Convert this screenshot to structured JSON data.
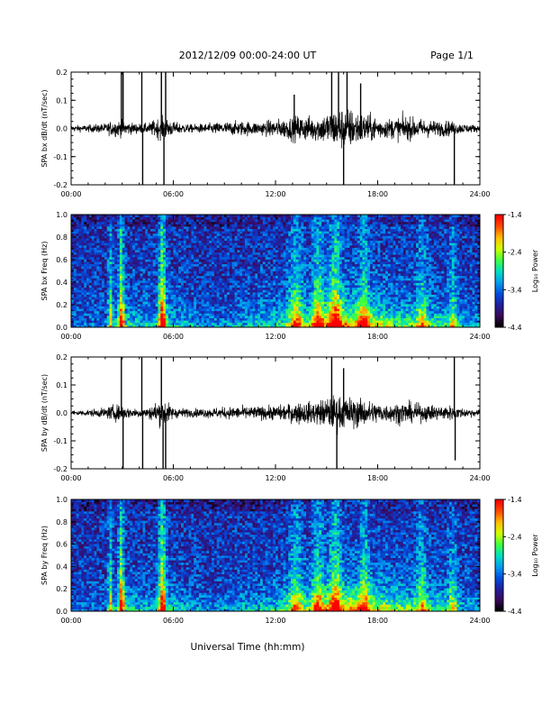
{
  "header": {
    "title": "2012/12/09  00:00-24:00 UT",
    "page": "Page 1/1"
  },
  "footer": {
    "xlabel": "Universal Time (hh:mm)"
  },
  "colorbar": {
    "title": "Log₁₀ Power",
    "ticks": [
      -1.4,
      -2.4,
      -3.4,
      -4.4
    ],
    "range": [
      -4.4,
      -1.4
    ],
    "colors": [
      "#000000",
      "#3a0a5a",
      "#2020a0",
      "#0050e0",
      "#00a0f0",
      "#00e0c0",
      "#40ff40",
      "#d0ff00",
      "#ffc000",
      "#ff5000",
      "#ff0000"
    ]
  },
  "chart_data": [
    {
      "type": "line",
      "name": "bx-waveform",
      "ylabel": "SPA bx dB/dt (nT/sec)",
      "xlim": [
        0,
        24
      ],
      "ylim": [
        -0.2,
        0.2
      ],
      "x_ticks": [
        "00:00",
        "06:00",
        "12:00",
        "18:00",
        "24:00"
      ],
      "y_ticks": [
        -0.2,
        -0.1,
        0.0,
        0.1,
        0.2
      ],
      "envelope": {
        "x": [
          0,
          1,
          2,
          2.5,
          3,
          3.5,
          4,
          4.5,
          5,
          5.5,
          6,
          7,
          8,
          9,
          10,
          11,
          12,
          12.5,
          13,
          13.5,
          14,
          14.5,
          15,
          15.5,
          16,
          16.5,
          17,
          17.5,
          18,
          18.5,
          19,
          19.5,
          20,
          20.5,
          21,
          21.5,
          22,
          22.5,
          23,
          24
        ],
        "amp": [
          0.018,
          0.022,
          0.03,
          0.05,
          0.05,
          0.035,
          0.03,
          0.03,
          0.06,
          0.07,
          0.04,
          0.025,
          0.03,
          0.04,
          0.045,
          0.04,
          0.055,
          0.06,
          0.075,
          0.08,
          0.075,
          0.08,
          0.1,
          0.12,
          0.13,
          0.12,
          0.1,
          0.085,
          0.07,
          0.06,
          0.065,
          0.08,
          0.065,
          0.06,
          0.055,
          0.045,
          0.05,
          0.04,
          0.03,
          0.02
        ]
      },
      "spikes": [
        {
          "t": 2.95,
          "amp": 0.2
        },
        {
          "t": 3.05,
          "amp": 0.2
        },
        {
          "t": 4.15,
          "amp": 0.2
        },
        {
          "t": 4.2,
          "amp": -0.2
        },
        {
          "t": 5.3,
          "amp": 0.2
        },
        {
          "t": 5.45,
          "amp": -0.2
        },
        {
          "t": 5.55,
          "amp": 0.2
        },
        {
          "t": 15.3,
          "amp": 0.2
        },
        {
          "t": 15.7,
          "amp": 0.2
        },
        {
          "t": 16.0,
          "amp": -0.2
        },
        {
          "t": 16.2,
          "amp": 0.2
        },
        {
          "t": 22.5,
          "amp": -0.2
        },
        {
          "t": 17.0,
          "amp": 0.16
        },
        {
          "t": 13.1,
          "amp": 0.12
        }
      ]
    },
    {
      "type": "heatmap",
      "name": "bx-spectrogram",
      "ylabel": "SPA bx Freq (Hz)",
      "xlim": [
        0,
        24
      ],
      "ylim": [
        0.0,
        1.0
      ],
      "x_ticks": [
        "00:00",
        "06:00",
        "12:00",
        "18:00",
        "24:00"
      ],
      "y_ticks": [
        0.0,
        0.2,
        0.4,
        0.6,
        0.8,
        1.0
      ],
      "zlim": [
        -4.4,
        -1.4
      ],
      "zlabel": "Log₁₀ Power",
      "activity": {
        "t": [
          0,
          2,
          3,
          5,
          6,
          8,
          10,
          12,
          13,
          14,
          15,
          16,
          17,
          18,
          19,
          20,
          21,
          22,
          23,
          24
        ],
        "level": [
          0.15,
          0.2,
          0.45,
          0.3,
          0.4,
          0.2,
          0.3,
          0.45,
          0.55,
          0.6,
          0.8,
          0.9,
          0.85,
          0.75,
          0.6,
          0.55,
          0.5,
          0.45,
          0.35,
          0.25
        ]
      },
      "hot_bands": [
        {
          "t": 2.3,
          "width": 0.12,
          "strength": 0.6
        },
        {
          "t": 2.95,
          "width": 0.15,
          "strength": 0.95
        },
        {
          "t": 5.35,
          "width": 0.22,
          "strength": 1.0
        },
        {
          "t": 13.2,
          "width": 0.4,
          "strength": 0.55
        },
        {
          "t": 14.5,
          "width": 0.35,
          "strength": 0.6
        },
        {
          "t": 15.5,
          "width": 0.35,
          "strength": 0.7
        },
        {
          "t": 17.2,
          "width": 0.3,
          "strength": 0.5
        },
        {
          "t": 20.6,
          "width": 0.3,
          "strength": 0.45
        },
        {
          "t": 22.4,
          "width": 0.25,
          "strength": 0.4
        }
      ]
    },
    {
      "type": "line",
      "name": "by-waveform",
      "ylabel": "SPA by dB/dt (nT/sec)",
      "xlim": [
        0,
        24
      ],
      "ylim": [
        -0.2,
        0.2
      ],
      "x_ticks": [
        "00:00",
        "06:00",
        "12:00",
        "18:00",
        "24:00"
      ],
      "y_ticks": [
        -0.2,
        -0.1,
        0.0,
        0.1,
        0.2
      ],
      "envelope": {
        "x": [
          0,
          1,
          2,
          2.5,
          3,
          3.5,
          4,
          4.5,
          5,
          5.5,
          6,
          7,
          8,
          9,
          10,
          11,
          12,
          12.5,
          13,
          13.5,
          14,
          14.5,
          15,
          15.5,
          16,
          16.5,
          17,
          17.5,
          18,
          18.5,
          19,
          19.5,
          20,
          20.5,
          21,
          21.5,
          22,
          22.5,
          23,
          24
        ],
        "amp": [
          0.015,
          0.02,
          0.03,
          0.05,
          0.045,
          0.03,
          0.03,
          0.03,
          0.07,
          0.08,
          0.035,
          0.025,
          0.03,
          0.035,
          0.04,
          0.04,
          0.045,
          0.05,
          0.06,
          0.07,
          0.065,
          0.075,
          0.095,
          0.11,
          0.1,
          0.095,
          0.085,
          0.075,
          0.065,
          0.055,
          0.06,
          0.07,
          0.06,
          0.055,
          0.05,
          0.045,
          0.05,
          0.04,
          0.03,
          0.02
        ]
      },
      "spikes": [
        {
          "t": 2.95,
          "amp": 0.2
        },
        {
          "t": 3.05,
          "amp": -0.2
        },
        {
          "t": 4.15,
          "amp": 0.2
        },
        {
          "t": 4.2,
          "amp": -0.2
        },
        {
          "t": 5.3,
          "amp": 0.2
        },
        {
          "t": 5.4,
          "amp": -0.2
        },
        {
          "t": 5.55,
          "amp": -0.2
        },
        {
          "t": 15.3,
          "amp": 0.2
        },
        {
          "t": 15.6,
          "amp": -0.2
        },
        {
          "t": 16.0,
          "amp": 0.16
        },
        {
          "t": 22.5,
          "amp": 0.2
        },
        {
          "t": 22.55,
          "amp": -0.17
        }
      ]
    },
    {
      "type": "heatmap",
      "name": "by-spectrogram",
      "ylabel": "SPA by Freq (Hz)",
      "xlim": [
        0,
        24
      ],
      "ylim": [
        0.0,
        1.0
      ],
      "x_ticks": [
        "00:00",
        "06:00",
        "12:00",
        "18:00",
        "24:00"
      ],
      "y_ticks": [
        0.0,
        0.2,
        0.4,
        0.6,
        0.8,
        1.0
      ],
      "zlim": [
        -4.4,
        -1.4
      ],
      "zlabel": "Log₁₀ Power",
      "activity": {
        "t": [
          0,
          2,
          3,
          5,
          6,
          8,
          10,
          12,
          13,
          14,
          15,
          16,
          17,
          18,
          19,
          20,
          21,
          22,
          23,
          24
        ],
        "level": [
          0.15,
          0.2,
          0.45,
          0.3,
          0.4,
          0.2,
          0.3,
          0.4,
          0.5,
          0.55,
          0.75,
          0.85,
          0.85,
          0.75,
          0.6,
          0.55,
          0.5,
          0.45,
          0.35,
          0.25
        ]
      },
      "hot_bands": [
        {
          "t": 2.3,
          "width": 0.12,
          "strength": 0.6
        },
        {
          "t": 2.95,
          "width": 0.15,
          "strength": 0.95
        },
        {
          "t": 5.35,
          "width": 0.22,
          "strength": 1.0
        },
        {
          "t": 13.2,
          "width": 0.4,
          "strength": 0.5
        },
        {
          "t": 14.5,
          "width": 0.35,
          "strength": 0.55
        },
        {
          "t": 15.5,
          "width": 0.35,
          "strength": 0.65
        },
        {
          "t": 17.2,
          "width": 0.3,
          "strength": 0.5
        },
        {
          "t": 20.6,
          "width": 0.3,
          "strength": 0.45
        },
        {
          "t": 22.4,
          "width": 0.25,
          "strength": 0.4
        }
      ]
    }
  ]
}
